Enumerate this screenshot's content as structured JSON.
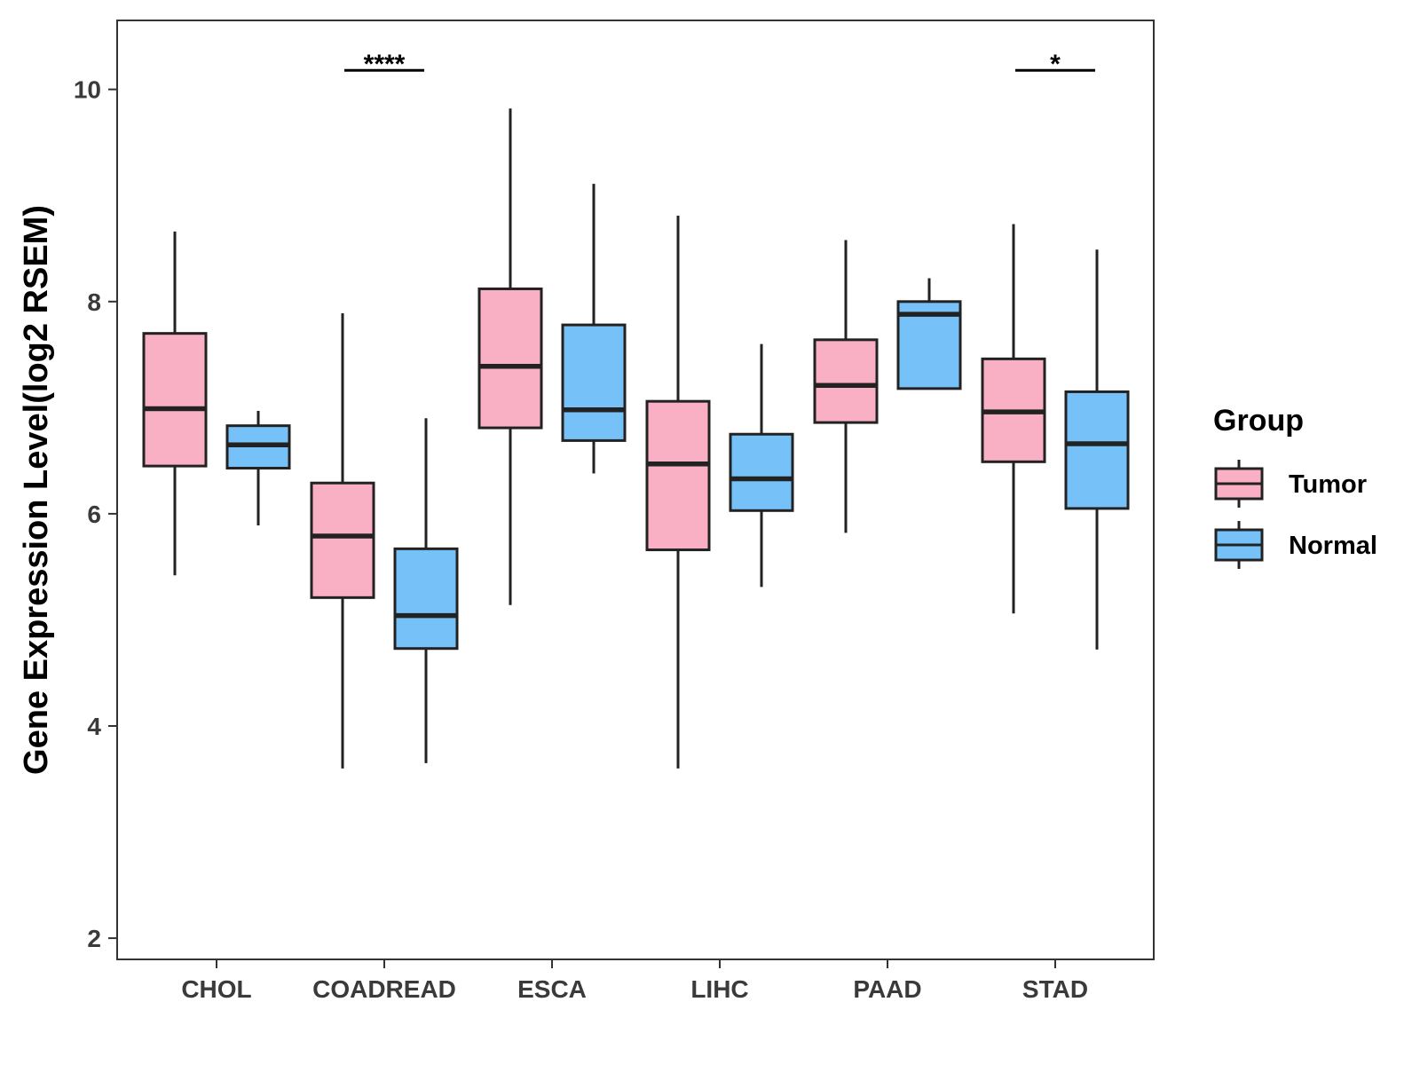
{
  "chart_data": {
    "type": "boxplot",
    "title": "",
    "xlabel": "",
    "ylabel": "Gene Expression Level(log2 RSEM)",
    "ylim": [
      1.8,
      10.65
    ],
    "y_ticks": [
      2,
      4,
      6,
      8,
      10
    ],
    "y_tick_labels": [
      "2",
      "4",
      "6",
      "8",
      "10"
    ],
    "grid": false,
    "categories": [
      "CHOL",
      "COADREAD",
      "ESCA",
      "LIHC",
      "PAAD",
      "STAD"
    ],
    "legend": {
      "title": "Group",
      "position": "right",
      "entries": [
        {
          "label": "Tumor",
          "color": "#FAB0C4"
        },
        {
          "label": "Normal",
          "color": "#77C1F9"
        }
      ]
    },
    "series": [
      {
        "name": "Tumor",
        "color": "#FAB0C4",
        "boxes": [
          {
            "min": 5.42,
            "q1": 6.45,
            "median": 6.99,
            "q3": 7.7,
            "max": 8.66
          },
          {
            "min": 3.6,
            "q1": 5.21,
            "median": 5.79,
            "q3": 6.29,
            "max": 7.89
          },
          {
            "min": 5.14,
            "q1": 6.81,
            "median": 7.39,
            "q3": 8.12,
            "max": 9.82
          },
          {
            "min": 3.6,
            "q1": 5.66,
            "median": 6.47,
            "q3": 7.06,
            "max": 8.81
          },
          {
            "min": 5.82,
            "q1": 6.86,
            "median": 7.21,
            "q3": 7.64,
            "max": 8.58
          },
          {
            "min": 5.06,
            "q1": 6.49,
            "median": 6.96,
            "q3": 7.46,
            "max": 8.73
          }
        ]
      },
      {
        "name": "Normal",
        "color": "#77C1F9",
        "boxes": [
          {
            "min": 5.89,
            "q1": 6.43,
            "median": 6.65,
            "q3": 6.83,
            "max": 6.97
          },
          {
            "min": 3.65,
            "q1": 4.73,
            "median": 5.04,
            "q3": 5.67,
            "max": 6.9
          },
          {
            "min": 6.38,
            "q1": 6.69,
            "median": 6.98,
            "q3": 7.78,
            "max": 9.11
          },
          {
            "min": 5.31,
            "q1": 6.03,
            "median": 6.33,
            "q3": 6.75,
            "max": 7.6
          },
          {
            "min": 7.18,
            "q1": 7.18,
            "median": 7.88,
            "q3": 8.0,
            "max": 8.22
          },
          {
            "min": 4.72,
            "q1": 6.05,
            "median": 6.66,
            "q3": 7.15,
            "max": 8.49
          }
        ]
      }
    ],
    "annotations": [
      {
        "category": "COADREAD",
        "text": "****",
        "y": 10.18
      },
      {
        "category": "STAD",
        "text": "*",
        "y": 10.18
      }
    ]
  }
}
